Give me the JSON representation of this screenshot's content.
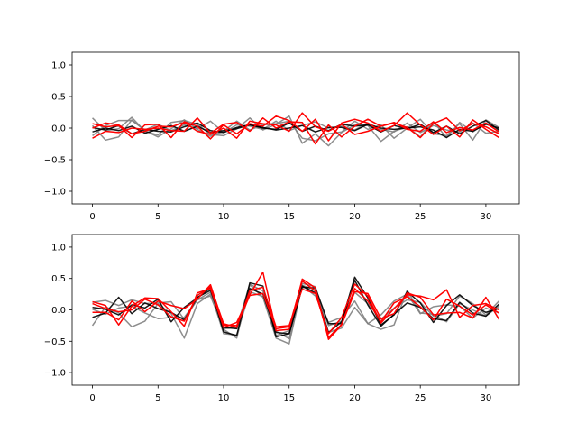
{
  "chart_data": [
    {
      "type": "line",
      "xlim": [
        -1.55,
        32.55
      ],
      "ylim": [
        -1.2,
        1.2
      ],
      "xticks": [
        0,
        5,
        10,
        15,
        20,
        25,
        30
      ],
      "yticks": [
        -1.0,
        -0.5,
        0.0,
        0.5,
        1.0
      ],
      "x": [
        0,
        1,
        2,
        3,
        4,
        5,
        6,
        7,
        8,
        9,
        10,
        11,
        12,
        13,
        14,
        15,
        16,
        17,
        18,
        19,
        20,
        21,
        22,
        23,
        24,
        25,
        26,
        27,
        28,
        29,
        30,
        31
      ],
      "series": [
        {
          "color": "#808080",
          "values": [
            0.16,
            -0.04,
            -0.01,
            0.17,
            -0.05,
            -0.11,
            0.09,
            0.12,
            0.06,
            -0.1,
            -0.12,
            -0.01,
            0.16,
            -0.03,
            0.06,
            0.19,
            -0.24,
            -0.09,
            -0.28,
            -0.07,
            0.05,
            0.04,
            -0.21,
            -0.05,
            0.02,
            -0.14,
            0.1,
            -0.15,
            0.09,
            -0.06,
            0.08,
            -0.05
          ]
        },
        {
          "color": "#808080",
          "values": [
            0.04,
            -0.19,
            -0.14,
            0.13,
            -0.04,
            -0.14,
            -0.01,
            0.13,
            -0.02,
            -0.13,
            -0.05,
            0.11,
            -0.03,
            0.05,
            0.07,
            0.11,
            -0.16,
            -0.2,
            -0.09,
            -0.06,
            0.11,
            -0.02,
            0.05,
            -0.16,
            0.0,
            0.14,
            -0.09,
            -0.12,
            0.07,
            -0.19,
            0.13,
            0.01
          ]
        },
        {
          "color": "#808080",
          "values": [
            -0.12,
            0.04,
            0.12,
            0.12,
            -0.03,
            0.06,
            -0.04,
            0.05,
            -0.01,
            0.11,
            -0.07,
            0.05,
            0.03,
            -0.02,
            0.11,
            -0.04,
            0.04,
            0.1,
            0.0,
            0.03,
            -0.03,
            0.08,
            -0.02,
            -0.06,
            0.08,
            -0.07,
            0.04,
            -0.03,
            -0.06,
            0.08,
            -0.08,
            -0.05
          ]
        },
        {
          "color": "#000000",
          "values": [
            -0.06,
            0.0,
            -0.04,
            0.03,
            -0.08,
            -0.02,
            0.04,
            -0.05,
            0.03,
            -0.07,
            -0.04,
            -0.01,
            0.05,
            0.0,
            -0.02,
            0.08,
            -0.05,
            0.03,
            -0.04,
            0.06,
            0.03,
            0.05,
            -0.06,
            0.04,
            -0.01,
            0.06,
            -0.07,
            0.03,
            -0.09,
            0.03,
            0.12,
            -0.03
          ]
        },
        {
          "color": "#000000",
          "values": [
            0.01,
            -0.03,
            0.04,
            -0.09,
            -0.02,
            -0.05,
            -0.06,
            0.02,
            0.08,
            -0.04,
            -0.07,
            0.01,
            0.05,
            0.01,
            -0.03,
            0.0,
            0.04,
            -0.06,
            0.01,
            0.01,
            -0.04,
            0.06,
            0.0,
            -0.02,
            0.0,
            0.02,
            -0.03,
            -0.15,
            -0.02,
            -0.05,
            0.06,
            0.0
          ]
        },
        {
          "color": "#ff0000",
          "values": [
            0.07,
            0.02,
            0.04,
            -0.15,
            0.05,
            0.06,
            -0.15,
            0.1,
            0.03,
            -0.17,
            0.05,
            -0.09,
            0.07,
            0.03,
            0.19,
            0.12,
            -0.05,
            0.14,
            -0.2,
            0.08,
            0.14,
            0.08,
            -0.05,
            0.04,
            0.24,
            0.05,
            -0.1,
            0.03,
            -0.14,
            0.13,
            -0.02,
            -0.15
          ]
        },
        {
          "color": "#ff0000",
          "values": [
            0.0,
            0.08,
            0.05,
            -0.09,
            -0.05,
            0.03,
            0.02,
            0.09,
            -0.05,
            -0.1,
            0.0,
            -0.16,
            0.11,
            0.07,
            0.05,
            -0.05,
            0.24,
            0.02,
            -0.05,
            0.06,
            -0.1,
            -0.05,
            0.03,
            0.09,
            -0.02,
            -0.05,
            0.1,
            -0.07,
            0.01,
            -0.03,
            0.08,
            -0.06
          ]
        },
        {
          "color": "#ff0000",
          "values": [
            -0.16,
            -0.05,
            -0.07,
            0.0,
            -0.02,
            0.0,
            -0.04,
            -0.05,
            0.16,
            -0.08,
            0.06,
            0.09,
            -0.05,
            0.16,
            0.0,
            0.1,
            0.09,
            -0.25,
            0.05,
            -0.14,
            0.03,
            0.14,
            0.03,
            0.08,
            0.01,
            -0.15,
            0.07,
            0.16,
            -0.04,
            0.07,
            0.02,
            -0.09
          ]
        }
      ]
    },
    {
      "type": "line",
      "xlim": [
        -1.55,
        32.55
      ],
      "ylim": [
        -1.2,
        1.2
      ],
      "xticks": [
        0,
        5,
        10,
        15,
        20,
        25,
        30
      ],
      "yticks": [
        -1.0,
        -0.5,
        0.0,
        0.5,
        1.0
      ],
      "x": [
        0,
        1,
        2,
        3,
        4,
        5,
        6,
        7,
        8,
        9,
        10,
        11,
        12,
        13,
        14,
        15,
        16,
        17,
        18,
        19,
        20,
        21,
        22,
        23,
        24,
        25,
        26,
        27,
        28,
        29,
        30,
        31
      ],
      "series": [
        {
          "color": "#808080",
          "values": [
            -0.25,
            0.05,
            -0.05,
            -0.27,
            -0.18,
            0.1,
            -0.06,
            -0.45,
            0.1,
            0.25,
            -0.31,
            -0.45,
            0.4,
            0.2,
            -0.45,
            -0.54,
            0.39,
            0.22,
            -0.2,
            -0.12,
            0.14,
            -0.22,
            -0.31,
            -0.24,
            0.31,
            -0.05,
            -0.07,
            -0.19,
            0.1,
            0.0,
            -0.1,
            0.06
          ]
        },
        {
          "color": "#808080",
          "values": [
            0.12,
            0.15,
            0.07,
            0.16,
            0.1,
            0.11,
            0.13,
            -0.15,
            0.16,
            0.22,
            -0.3,
            -0.28,
            0.41,
            0.3,
            -0.34,
            -0.46,
            0.39,
            0.32,
            -0.25,
            -0.18,
            0.28,
            0.1,
            -0.15,
            0.03,
            0.16,
            0.12,
            -0.1,
            -0.06,
            0.22,
            0.1,
            -0.08,
            0.14
          ]
        },
        {
          "color": "#808080",
          "values": [
            0.01,
            -0.07,
            0.03,
            0.06,
            -0.05,
            -0.14,
            -0.12,
            -0.12,
            0.16,
            0.28,
            -0.38,
            -0.4,
            0.29,
            0.21,
            -0.41,
            -0.33,
            0.42,
            0.37,
            -0.36,
            -0.29,
            0.04,
            -0.22,
            -0.08,
            0.14,
            0.25,
            -0.06,
            0.05,
            0.08,
            0.06,
            -0.13,
            0.03,
            -0.05
          ]
        },
        {
          "color": "#000000",
          "values": [
            0.04,
            0.01,
            -0.08,
            0.08,
            0.03,
            0.17,
            -0.19,
            0.04,
            0.19,
            0.35,
            -0.35,
            -0.41,
            0.43,
            0.38,
            -0.43,
            -0.38,
            0.38,
            0.27,
            -0.36,
            -0.19,
            0.52,
            0.19,
            -0.24,
            -0.08,
            0.29,
            0.11,
            -0.2,
            0.07,
            0.24,
            0.07,
            -0.04,
            0.02
          ]
        },
        {
          "color": "#000000",
          "values": [
            -0.12,
            -0.05,
            0.2,
            -0.06,
            0.11,
            0.02,
            -0.04,
            -0.16,
            0.2,
            0.31,
            -0.28,
            -0.3,
            0.34,
            0.25,
            -0.36,
            -0.38,
            0.36,
            0.35,
            -0.22,
            -0.22,
            0.47,
            0.08,
            -0.26,
            -0.07,
            0.11,
            0.04,
            -0.14,
            -0.17,
            0.12,
            -0.05,
            -0.1,
            0.09
          ]
        },
        {
          "color": "#ff0000",
          "values": [
            0.13,
            0.07,
            -0.24,
            0.06,
            0.19,
            0.18,
            -0.03,
            -0.26,
            0.27,
            0.34,
            -0.28,
            -0.2,
            0.24,
            0.6,
            -0.33,
            -0.31,
            0.49,
            0.35,
            -0.47,
            -0.24,
            0.29,
            0.26,
            -0.14,
            -0.06,
            0.27,
            0.2,
            -0.08,
            -0.05,
            -0.04,
            -0.13,
            0.2,
            -0.15
          ]
        },
        {
          "color": "#ff0000",
          "values": [
            0.1,
            0.02,
            -0.03,
            0.0,
            0.17,
            0.08,
            -0.11,
            -0.18,
            0.23,
            0.37,
            -0.22,
            -0.28,
            0.31,
            0.36,
            -0.27,
            -0.25,
            0.33,
            0.26,
            -0.38,
            -0.12,
            0.41,
            0.22,
            -0.21,
            0.02,
            0.24,
            0.22,
            0.16,
            0.32,
            -0.12,
            0.07,
            0.1,
            0.0
          ]
        },
        {
          "color": "#ff0000",
          "values": [
            -0.04,
            -0.04,
            -0.16,
            0.14,
            -0.03,
            0.14,
            0.07,
            0.02,
            0.17,
            0.4,
            -0.24,
            -0.25,
            0.23,
            0.26,
            -0.3,
            -0.27,
            0.46,
            0.3,
            -0.44,
            -0.23,
            0.34,
            0.14,
            -0.19,
            0.11,
            0.21,
            0.05,
            -0.16,
            0.17,
            0.06,
            -0.08,
            0.08,
            -0.05
          ]
        }
      ]
    }
  ]
}
